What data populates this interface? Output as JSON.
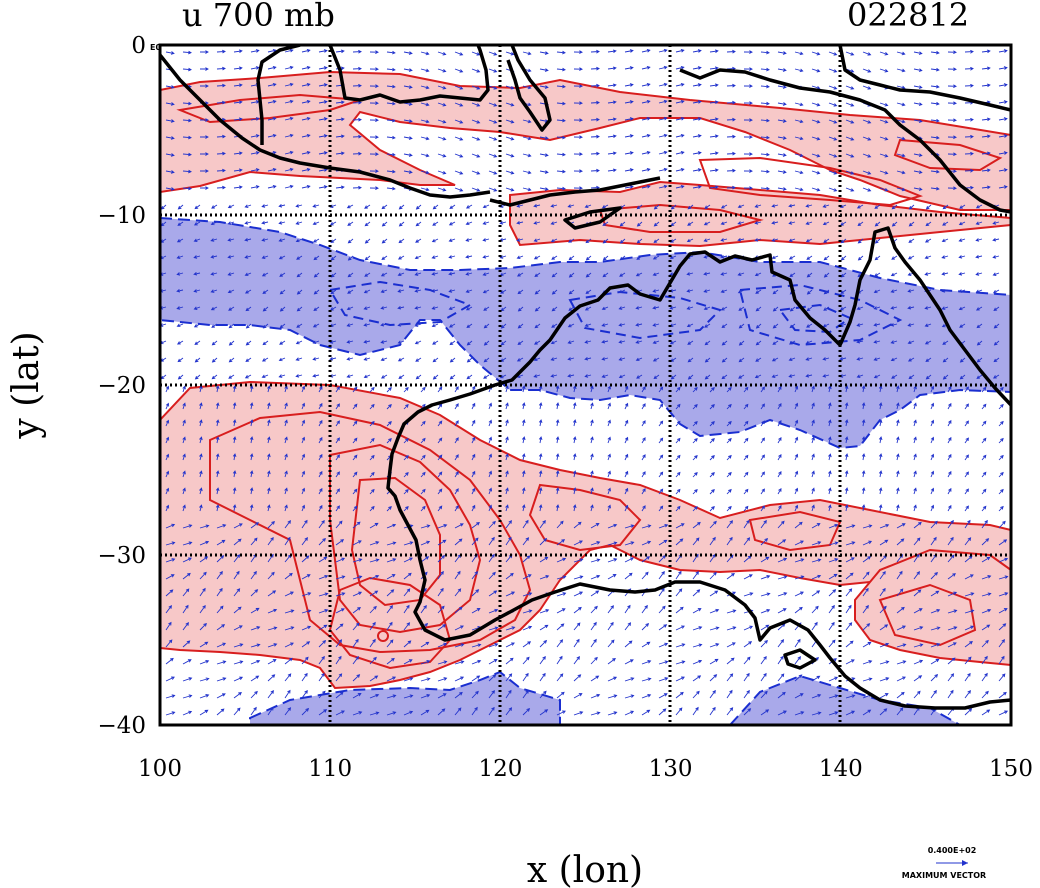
{
  "plot": {
    "title_left": "u  700  mb",
    "title_right": "022812",
    "corner_tag": "E0",
    "xlabel": "x  (lon)",
    "ylabel": "y  (lat)",
    "vector_key_value": "0.400E+02",
    "vector_key_label": "MAXIMUM VECTOR"
  },
  "colors": {
    "positive_fill": "#f7c8c8",
    "positive_line": "#d81e1e",
    "negative_fill": "#a9a9ea",
    "negative_line": "#1a2ed0",
    "coast": "#000000",
    "vector": "#2233cc"
  },
  "chart_data": {
    "type": "contour-map",
    "variable": "u",
    "level": "700 mb",
    "xlim": [
      100,
      150
    ],
    "ylim": [
      -40,
      0
    ],
    "x_ticks": [
      100,
      110,
      120,
      130,
      140,
      150
    ],
    "x_tick_labels": [
      "100",
      "110",
      "120",
      "130",
      "140",
      "150"
    ],
    "y_ticks": [
      0,
      -10,
      -20,
      -30,
      -40
    ],
    "y_tick_labels": [
      "0",
      "−10",
      "−20",
      "−30",
      "−40"
    ],
    "grid": true
  }
}
